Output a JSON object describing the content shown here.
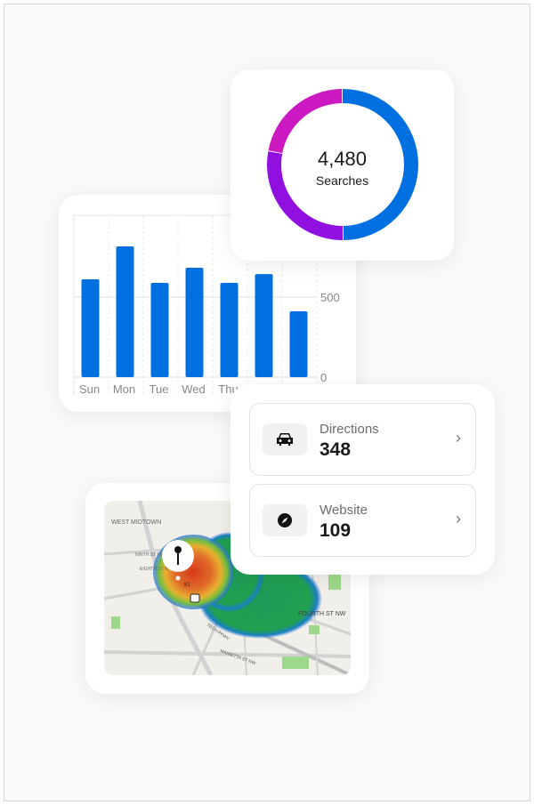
{
  "bar_chart": {
    "chart_data": {
      "type": "bar",
      "categories": [
        "Sun",
        "Mon",
        "Tue",
        "Wed",
        "Thu",
        "",
        ""
      ],
      "values": [
        611,
        817,
        589,
        683,
        589,
        644,
        411
      ],
      "y_ticks": [
        "0",
        "500"
      ],
      "ylim": [
        0,
        1000
      ],
      "grid": true,
      "color": "#0070e0"
    }
  },
  "donut": {
    "value": "4,480",
    "label": "Searches",
    "chart_data": {
      "type": "pie",
      "values": [
        50,
        28,
        22
      ],
      "colors": [
        "#0070e0",
        "#9010e0",
        "#cc18c0"
      ]
    }
  },
  "actions": [
    {
      "label": "Directions",
      "value": "348",
      "icon": "car-icon"
    },
    {
      "label": "Website",
      "value": "109",
      "icon": "compass-icon"
    }
  ],
  "map": {
    "labels": [
      "WEST MIDTOWN",
      "NINTH ST NW",
      "EIGHTH ST NW",
      "TECH PKWY",
      "MARIETTA ST NW",
      "FOURTH ST NW",
      "81"
    ]
  }
}
